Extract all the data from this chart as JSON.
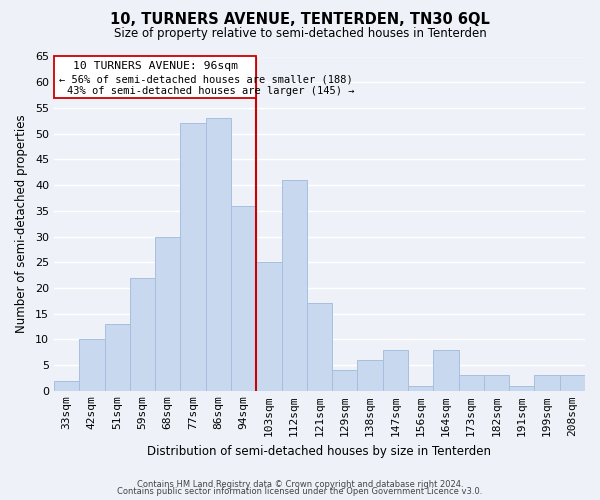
{
  "title": "10, TURNERS AVENUE, TENTERDEN, TN30 6QL",
  "subtitle": "Size of property relative to semi-detached houses in Tenterden",
  "xlabel": "Distribution of semi-detached houses by size in Tenterden",
  "ylabel": "Number of semi-detached properties",
  "bar_color": "#c8d8ee",
  "bar_edge_color": "#a8bee0",
  "categories": [
    "33sqm",
    "42sqm",
    "51sqm",
    "59sqm",
    "68sqm",
    "77sqm",
    "86sqm",
    "94sqm",
    "103sqm",
    "112sqm",
    "121sqm",
    "129sqm",
    "138sqm",
    "147sqm",
    "156sqm",
    "164sqm",
    "173sqm",
    "182sqm",
    "191sqm",
    "199sqm",
    "208sqm"
  ],
  "values": [
    2,
    10,
    13,
    22,
    30,
    52,
    53,
    36,
    25,
    41,
    17,
    4,
    6,
    8,
    1,
    8,
    3,
    3,
    1,
    3,
    3
  ],
  "ylim": [
    0,
    65
  ],
  "yticks": [
    0,
    5,
    10,
    15,
    20,
    25,
    30,
    35,
    40,
    45,
    50,
    55,
    60,
    65
  ],
  "property_label": "10 TURNERS AVENUE: 96sqm",
  "annotation_line1": "← 56% of semi-detached houses are smaller (188)",
  "annotation_line2": "43% of semi-detached houses are larger (145) →",
  "line_color": "#cc0000",
  "box_edge_color": "#cc0000",
  "footer_line1": "Contains HM Land Registry data © Crown copyright and database right 2024.",
  "footer_line2": "Contains public sector information licensed under the Open Government Licence v3.0.",
  "background_color": "#eef2f8",
  "grid_color": "#ffffff"
}
